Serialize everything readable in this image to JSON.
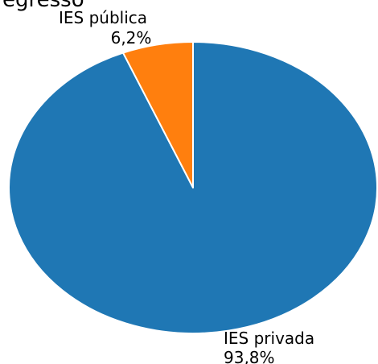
{
  "chart_data": {
    "type": "pie",
    "title": "egresso",
    "slices": [
      {
        "label": "IES privada",
        "value": 93.8,
        "percent_label": "93,8%",
        "color": "#1f77b4"
      },
      {
        "label": "IES pública",
        "value": 6.2,
        "percent_label": "6,2%",
        "color": "#ff7f0e"
      }
    ],
    "edge_color": "#ffffff"
  }
}
